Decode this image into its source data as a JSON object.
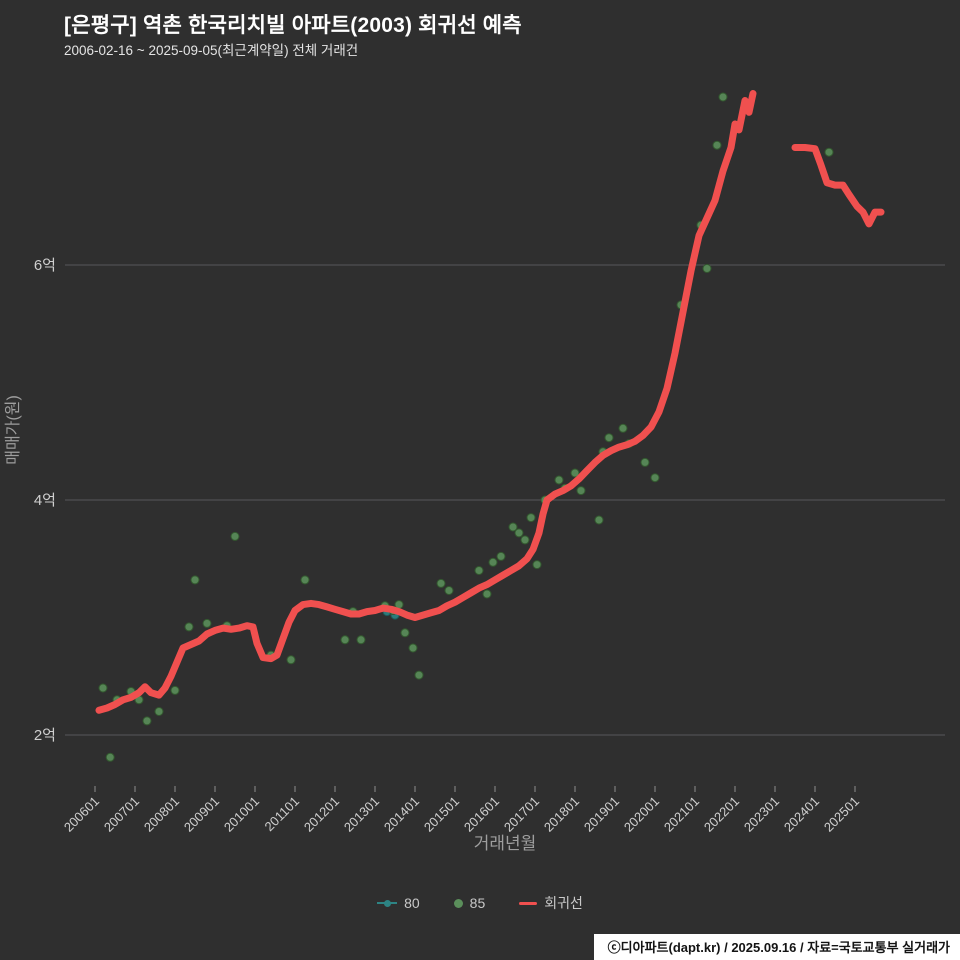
{
  "footer": {
    "credit": "ⓒ디아파트(dapt.kr) / 2025.09.16 / 자료=국토교통부 실거래가"
  },
  "legend": {
    "items": [
      {
        "label": "80",
        "color": "#2d8484",
        "marker": "line-dot"
      },
      {
        "label": "85",
        "color": "#5b8f5b",
        "marker": "dot"
      },
      {
        "label": "회귀선",
        "color": "#f0504f",
        "marker": "line"
      }
    ]
  },
  "chart_data": {
    "type": "scatter",
    "title": "[은평구] 역촌 한국리치빌 아파트(2003) 회귀선 예측",
    "subtitle": "2006-02-16 ~ 2025-09-05(최근계약일) 전체 거래건",
    "xlabel": "거래년월",
    "ylabel": "매매가(원)",
    "grid": "horizontal-only",
    "legend_position": "bottom-center",
    "unit": "억원",
    "ylim": [
      1.6,
      7.7
    ],
    "y_ticks": [
      {
        "value": 2,
        "label": "2억"
      },
      {
        "value": 4,
        "label": "4억"
      },
      {
        "value": 6,
        "label": "6억"
      }
    ],
    "x_ticks": [
      "200601",
      "200701",
      "200801",
      "200901",
      "201001",
      "201101",
      "201201",
      "201301",
      "201401",
      "201501",
      "201601",
      "201701",
      "201801",
      "201901",
      "202001",
      "202101",
      "202201",
      "202301",
      "202401",
      "202501"
    ],
    "series": [
      {
        "name": "80",
        "type": "scatter",
        "color": "#2d8484",
        "stroke": "#1d5a5a",
        "points": [
          [
            2013.3,
            3.05
          ],
          [
            2013.5,
            3.02
          ]
        ]
      },
      {
        "name": "85",
        "type": "scatter",
        "color": "#5b8f5b",
        "stroke": "#33592f",
        "points": [
          [
            2006.2,
            2.4
          ],
          [
            2006.38,
            1.81
          ],
          [
            2006.55,
            2.3
          ],
          [
            2006.9,
            2.37
          ],
          [
            2007.1,
            2.3
          ],
          [
            2007.3,
            2.12
          ],
          [
            2007.6,
            2.2
          ],
          [
            2008.0,
            2.38
          ],
          [
            2008.35,
            2.92
          ],
          [
            2008.5,
            3.32
          ],
          [
            2008.8,
            2.95
          ],
          [
            2009.3,
            2.93
          ],
          [
            2009.5,
            3.69
          ],
          [
            2010.4,
            2.68
          ],
          [
            2010.9,
            2.64
          ],
          [
            2011.25,
            3.32
          ],
          [
            2012.25,
            2.81
          ],
          [
            2012.45,
            3.05
          ],
          [
            2012.65,
            2.81
          ],
          [
            2013.25,
            3.1
          ],
          [
            2013.45,
            3.06
          ],
          [
            2013.6,
            3.11
          ],
          [
            2013.75,
            2.87
          ],
          [
            2013.95,
            2.74
          ],
          [
            2014.1,
            2.51
          ],
          [
            2014.65,
            3.29
          ],
          [
            2014.85,
            3.23
          ],
          [
            2015.6,
            3.4
          ],
          [
            2015.8,
            3.2
          ],
          [
            2015.95,
            3.47
          ],
          [
            2016.15,
            3.52
          ],
          [
            2016.45,
            3.77
          ],
          [
            2016.6,
            3.72
          ],
          [
            2016.75,
            3.66
          ],
          [
            2016.9,
            3.85
          ],
          [
            2017.05,
            3.45
          ],
          [
            2017.25,
            4.0
          ],
          [
            2017.6,
            4.17
          ],
          [
            2017.75,
            4.1
          ],
          [
            2018.0,
            4.23
          ],
          [
            2018.15,
            4.08
          ],
          [
            2018.6,
            3.83
          ],
          [
            2018.7,
            4.41
          ],
          [
            2018.85,
            4.53
          ],
          [
            2019.2,
            4.61
          ],
          [
            2019.35,
            4.48
          ],
          [
            2019.75,
            4.32
          ],
          [
            2020.0,
            4.19
          ],
          [
            2020.65,
            5.66
          ],
          [
            2021.15,
            6.34
          ],
          [
            2021.3,
            5.97
          ],
          [
            2021.55,
            7.02
          ],
          [
            2021.7,
            7.43
          ],
          [
            2024.35,
            6.96
          ]
        ]
      },
      {
        "name": "회귀선",
        "type": "line",
        "color": "#f0504f",
        "width": 7,
        "segments": [
          [
            [
              2006.1,
              2.21
            ],
            [
              2006.3,
              2.23
            ],
            [
              2006.5,
              2.26
            ],
            [
              2006.7,
              2.3
            ],
            [
              2006.9,
              2.32
            ],
            [
              2007.1,
              2.36
            ],
            [
              2007.25,
              2.41
            ],
            [
              2007.4,
              2.36
            ],
            [
              2007.6,
              2.34
            ],
            [
              2007.75,
              2.4
            ],
            [
              2007.9,
              2.5
            ],
            [
              2008.05,
              2.62
            ],
            [
              2008.2,
              2.74
            ],
            [
              2008.4,
              2.77
            ],
            [
              2008.6,
              2.8
            ],
            [
              2008.8,
              2.86
            ],
            [
              2009.0,
              2.89
            ],
            [
              2009.2,
              2.91
            ],
            [
              2009.4,
              2.9
            ],
            [
              2009.6,
              2.91
            ],
            [
              2009.8,
              2.93
            ],
            [
              2009.95,
              2.92
            ],
            [
              2010.05,
              2.78
            ],
            [
              2010.2,
              2.66
            ],
            [
              2010.4,
              2.65
            ],
            [
              2010.55,
              2.68
            ],
            [
              2010.7,
              2.82
            ],
            [
              2010.85,
              2.96
            ],
            [
              2011.0,
              3.06
            ],
            [
              2011.2,
              3.11
            ],
            [
              2011.4,
              3.12
            ],
            [
              2011.6,
              3.11
            ],
            [
              2011.8,
              3.09
            ],
            [
              2012.0,
              3.07
            ],
            [
              2012.2,
              3.05
            ],
            [
              2012.4,
              3.03
            ],
            [
              2012.6,
              3.03
            ],
            [
              2012.8,
              3.05
            ],
            [
              2013.0,
              3.06
            ],
            [
              2013.2,
              3.08
            ],
            [
              2013.4,
              3.07
            ],
            [
              2013.6,
              3.05
            ],
            [
              2013.8,
              3.02
            ],
            [
              2014.0,
              3.0
            ],
            [
              2014.2,
              3.02
            ],
            [
              2014.4,
              3.04
            ],
            [
              2014.6,
              3.06
            ],
            [
              2014.8,
              3.1
            ],
            [
              2015.0,
              3.13
            ],
            [
              2015.2,
              3.17
            ],
            [
              2015.4,
              3.21
            ],
            [
              2015.6,
              3.25
            ],
            [
              2015.8,
              3.28
            ],
            [
              2016.0,
              3.32
            ],
            [
              2016.2,
              3.36
            ],
            [
              2016.4,
              3.4
            ],
            [
              2016.6,
              3.44
            ],
            [
              2016.8,
              3.5
            ],
            [
              2016.95,
              3.58
            ],
            [
              2017.1,
              3.72
            ],
            [
              2017.2,
              3.88
            ],
            [
              2017.3,
              4.0
            ],
            [
              2017.5,
              4.05
            ],
            [
              2017.7,
              4.08
            ],
            [
              2017.9,
              4.12
            ],
            [
              2018.1,
              4.18
            ],
            [
              2018.3,
              4.25
            ],
            [
              2018.5,
              4.32
            ],
            [
              2018.7,
              4.38
            ],
            [
              2018.9,
              4.42
            ],
            [
              2019.1,
              4.45
            ],
            [
              2019.3,
              4.47
            ],
            [
              2019.5,
              4.5
            ],
            [
              2019.7,
              4.55
            ],
            [
              2019.9,
              4.62
            ],
            [
              2020.1,
              4.75
            ],
            [
              2020.3,
              4.95
            ],
            [
              2020.5,
              5.25
            ],
            [
              2020.7,
              5.6
            ],
            [
              2020.9,
              5.95
            ],
            [
              2021.1,
              6.25
            ],
            [
              2021.3,
              6.4
            ],
            [
              2021.5,
              6.55
            ],
            [
              2021.7,
              6.8
            ],
            [
              2021.9,
              7.0
            ],
            [
              2022.0,
              7.2
            ],
            [
              2022.1,
              7.15
            ],
            [
              2022.25,
              7.4
            ],
            [
              2022.35,
              7.3
            ],
            [
              2022.45,
              7.46
            ]
          ],
          [
            [
              2023.5,
              7.0
            ],
            [
              2023.75,
              7.0
            ],
            [
              2024.0,
              6.99
            ],
            [
              2024.15,
              6.85
            ],
            [
              2024.3,
              6.7
            ],
            [
              2024.5,
              6.68
            ],
            [
              2024.7,
              6.68
            ],
            [
              2024.85,
              6.6
            ],
            [
              2025.05,
              6.5
            ],
            [
              2025.2,
              6.45
            ],
            [
              2025.35,
              6.35
            ],
            [
              2025.5,
              6.45
            ],
            [
              2025.65,
              6.45
            ]
          ]
        ]
      }
    ]
  }
}
